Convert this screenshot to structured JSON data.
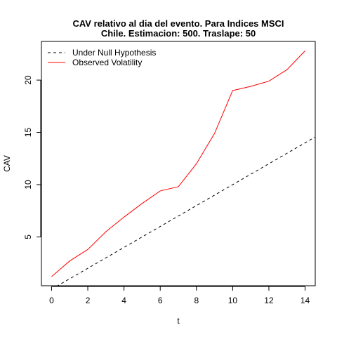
{
  "chart_data": {
    "type": "line",
    "title": "CAV relativo al dia del evento. Para Indices MSCI",
    "subtitle": "Chile. Estimacion: 500. Traslape: 50",
    "xlabel": "t",
    "ylabel": "CAV",
    "xlim": [
      -0.56,
      14.56
    ],
    "ylim": [
      0.33,
      23.7
    ],
    "x_ticks": [
      0,
      2,
      4,
      6,
      8,
      10,
      12,
      14
    ],
    "y_ticks": [
      5,
      10,
      15,
      20
    ],
    "grid": false,
    "legend_position": "top-left",
    "series": [
      {
        "name": "Under Null Hypothesis",
        "color": "#000000",
        "dash": "dashed",
        "x": [
          0,
          1,
          2,
          3,
          4,
          5,
          6,
          7,
          8,
          9,
          10,
          11,
          12,
          13,
          14,
          14.56
        ],
        "y": [
          0.0,
          1.0,
          2.0,
          3.0,
          4.0,
          5.0,
          6.0,
          7.0,
          8.0,
          9.0,
          10.0,
          11.0,
          12.0,
          13.0,
          14.0,
          14.56
        ]
      },
      {
        "name": "Observed Volatility",
        "color": "#ff0000",
        "dash": "solid",
        "x": [
          0,
          1,
          2,
          3,
          4,
          5,
          6,
          7,
          8,
          9,
          10,
          11,
          12,
          13,
          14
        ],
        "y": [
          1.2,
          2.7,
          3.8,
          5.5,
          6.9,
          8.2,
          9.4,
          9.8,
          12.0,
          14.9,
          19.0,
          19.4,
          19.9,
          21.0,
          22.8
        ]
      }
    ]
  }
}
